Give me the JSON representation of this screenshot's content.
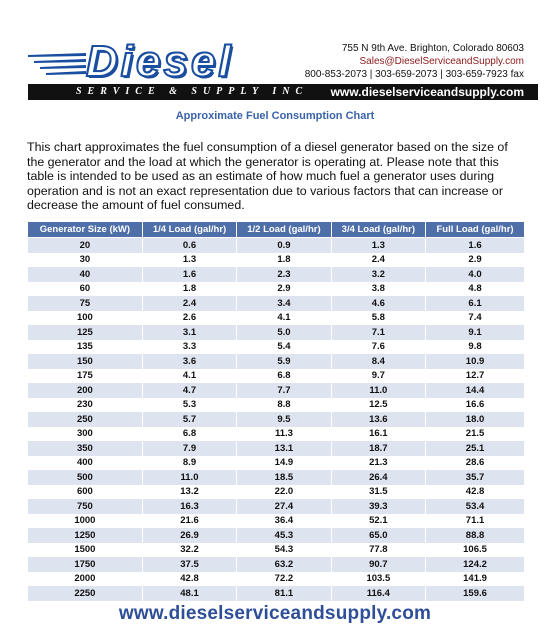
{
  "header": {
    "brand": "Diesel",
    "tagline": "SERVICE & SUPPLY INC",
    "website": "www.dieselserviceandsupply.com",
    "address": "755 N 9th Ave. Brighton, Colorado  80603",
    "email": "Sales@DieselServiceandSupply.com",
    "phones": "800-853-2073 | 303-659-2073 | 303-659-7923 fax",
    "brand_color": "#1a4ea0"
  },
  "title": "Approximate Fuel Consumption Chart",
  "intro": "This chart approximates the fuel consumption of a diesel generator based on the size of the generator and the load at which the generator is operating at.  Please note that this table is intended to be used as an estimate of how much fuel a generator uses during operation and is not an exact representation due to various factors that can increase or decrease the amount of fuel consumed.",
  "table": {
    "header_color": "#4f6fa9",
    "stripe_color": "#dde3ef",
    "columns": [
      "Generator Size (kW)",
      "1/4 Load (gal/hr)",
      "1/2 Load (gal/hr)",
      "3/4 Load (gal/hr)",
      "Full Load (gal/hr)"
    ],
    "rows": [
      [
        "20",
        "0.6",
        "0.9",
        "1.3",
        "1.6"
      ],
      [
        "30",
        "1.3",
        "1.8",
        "2.4",
        "2.9"
      ],
      [
        "40",
        "1.6",
        "2.3",
        "3.2",
        "4.0"
      ],
      [
        "60",
        "1.8",
        "2.9",
        "3.8",
        "4.8"
      ],
      [
        "75",
        "2.4",
        "3.4",
        "4.6",
        "6.1"
      ],
      [
        "100",
        "2.6",
        "4.1",
        "5.8",
        "7.4"
      ],
      [
        "125",
        "3.1",
        "5.0",
        "7.1",
        "9.1"
      ],
      [
        "135",
        "3.3",
        "5.4",
        "7.6",
        "9.8"
      ],
      [
        "150",
        "3.6",
        "5.9",
        "8.4",
        "10.9"
      ],
      [
        "175",
        "4.1",
        "6.8",
        "9.7",
        "12.7"
      ],
      [
        "200",
        "4.7",
        "7.7",
        "11.0",
        "14.4"
      ],
      [
        "230",
        "5.3",
        "8.8",
        "12.5",
        "16.6"
      ],
      [
        "250",
        "5.7",
        "9.5",
        "13.6",
        "18.0"
      ],
      [
        "300",
        "6.8",
        "11.3",
        "16.1",
        "21.5"
      ],
      [
        "350",
        "7.9",
        "13.1",
        "18.7",
        "25.1"
      ],
      [
        "400",
        "8.9",
        "14.9",
        "21.3",
        "28.6"
      ],
      [
        "500",
        "11.0",
        "18.5",
        "26.4",
        "35.7"
      ],
      [
        "600",
        "13.2",
        "22.0",
        "31.5",
        "42.8"
      ],
      [
        "750",
        "16.3",
        "27.4",
        "39.3",
        "53.4"
      ],
      [
        "1000",
        "21.6",
        "36.4",
        "52.1",
        "71.1"
      ],
      [
        "1250",
        "26.9",
        "45.3",
        "65.0",
        "88.8"
      ],
      [
        "1500",
        "32.2",
        "54.3",
        "77.8",
        "106.5"
      ],
      [
        "1750",
        "37.5",
        "63.2",
        "90.7",
        "124.2"
      ],
      [
        "2000",
        "42.8",
        "72.2",
        "103.5",
        "141.9"
      ],
      [
        "2250",
        "48.1",
        "81.1",
        "116.4",
        "159.6"
      ]
    ]
  },
  "footer": {
    "website": "www.dieselserviceandsupply.com"
  }
}
